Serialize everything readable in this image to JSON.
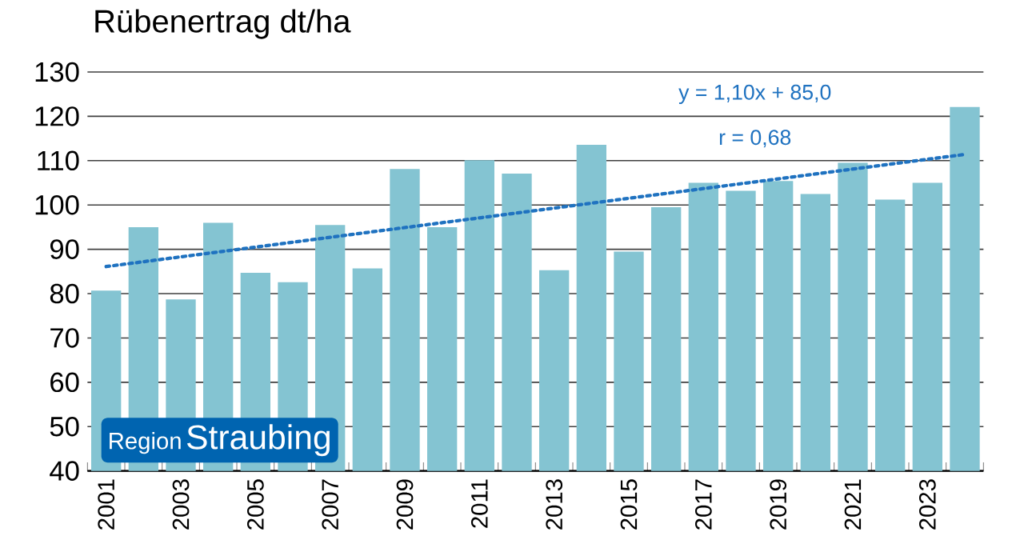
{
  "chart_data": {
    "type": "bar",
    "title": "Rübenertrag dt/ha",
    "categories": [
      "2001",
      null,
      "2003",
      null,
      "2005",
      null,
      "2007",
      null,
      "2009",
      null,
      "2011",
      null,
      "2013",
      null,
      "2015",
      null,
      "2017",
      null,
      "2019",
      null,
      "2021",
      null,
      "2023",
      null
    ],
    "series": [
      {
        "color": "#84c4d2",
        "values": [
          80.7,
          95.0,
          78.7,
          96.0,
          84.7,
          82.6,
          95.5,
          85.7,
          108.1,
          95.0,
          110.1,
          107.1,
          85.3,
          113.6,
          89.5,
          99.5,
          105.0,
          103.2,
          105.4,
          102.5,
          109.5,
          101.2,
          105.0,
          122.1
        ]
      },
      {
        "type": "line",
        "color": "#1f72c0",
        "line_style": "dotted",
        "marker": "none",
        "values": [
          86.1,
          87.2,
          88.3,
          89.4,
          90.5,
          91.6,
          92.7,
          93.8,
          94.9,
          96.0,
          97.1,
          98.2,
          99.3,
          100.4,
          101.5,
          102.6,
          103.7,
          104.8,
          105.9,
          107.0,
          108.1,
          109.2,
          110.3,
          111.4
        ]
      }
    ],
    "ylim": [
      40,
      130
    ],
    "yticks": [
      40,
      50,
      60,
      70,
      80,
      90,
      100,
      110,
      120,
      130
    ],
    "grid": "y",
    "annotations": [
      "y = 1,10x + 85,0",
      "r = 0,68",
      "Region",
      "Straubing"
    ]
  }
}
